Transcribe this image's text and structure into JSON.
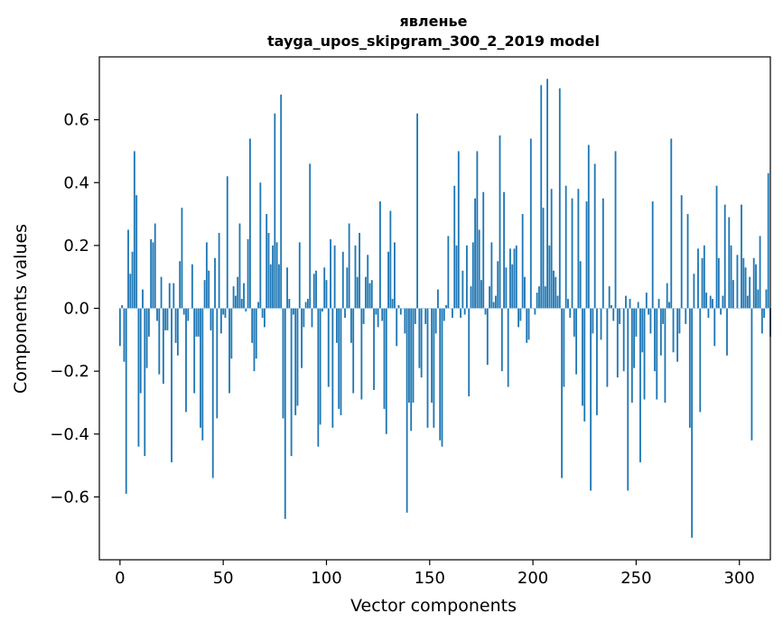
{
  "chart_data": {
    "type": "bar",
    "title": "явленье",
    "subtitle": "tayga_upos_skipgram_300_2_2019 model",
    "xlabel": "Vector components",
    "ylabel": "Components values",
    "xlim": [
      -10,
      315
    ],
    "ylim": [
      -0.8,
      0.8
    ],
    "xticks": [
      0,
      50,
      100,
      150,
      200,
      250,
      300
    ],
    "yticks": [
      -0.6,
      -0.4,
      -0.2,
      0.0,
      0.2,
      0.4,
      0.6
    ],
    "xtick_labels": [
      "0",
      "50",
      "100",
      "150",
      "200",
      "250",
      "300"
    ],
    "ytick_labels": [
      "−0.6",
      "−0.4",
      "−0.2",
      "0.0",
      "0.2",
      "0.4",
      "0.6"
    ],
    "grid": false,
    "bar_color": "#1f77b4",
    "values": [
      -0.12,
      0.01,
      -0.17,
      -0.59,
      0.25,
      0.11,
      0.18,
      0.5,
      0.36,
      -0.44,
      -0.27,
      0.06,
      -0.47,
      -0.19,
      -0.09,
      0.22,
      0.21,
      0.27,
      -0.04,
      -0.21,
      0.1,
      -0.24,
      -0.07,
      -0.07,
      0.08,
      -0.49,
      0.08,
      -0.11,
      -0.15,
      0.15,
      0.32,
      -0.02,
      -0.33,
      -0.04,
      0.0,
      0.14,
      -0.27,
      -0.09,
      -0.09,
      -0.38,
      -0.42,
      0.09,
      0.21,
      0.12,
      -0.07,
      -0.54,
      0.16,
      -0.35,
      0.24,
      -0.08,
      -0.02,
      -0.03,
      0.42,
      -0.27,
      -0.16,
      0.07,
      0.04,
      0.1,
      0.27,
      0.03,
      0.08,
      -0.01,
      0.22,
      0.54,
      -0.11,
      -0.2,
      -0.16,
      0.02,
      0.4,
      -0.03,
      -0.06,
      0.3,
      0.24,
      0.14,
      0.2,
      0.62,
      0.21,
      0.14,
      0.68,
      -0.35,
      -0.67,
      0.13,
      0.03,
      -0.47,
      -0.02,
      -0.34,
      -0.31,
      0.21,
      -0.19,
      -0.06,
      0.02,
      0.03,
      0.46,
      -0.06,
      0.11,
      0.12,
      -0.44,
      -0.37,
      -0.01,
      0.13,
      0.09,
      -0.25,
      0.22,
      -0.38,
      0.2,
      -0.11,
      -0.32,
      -0.34,
      0.18,
      -0.03,
      0.13,
      0.27,
      -0.11,
      -0.27,
      0.2,
      0.1,
      0.24,
      -0.29,
      -0.05,
      0.1,
      0.17,
      0.08,
      0.09,
      -0.26,
      -0.02,
      -0.06,
      0.34,
      -0.04,
      -0.32,
      -0.4,
      0.18,
      0.31,
      0.03,
      0.21,
      -0.12,
      0.01,
      -0.02,
      0.0,
      -0.08,
      -0.65,
      -0.3,
      -0.39,
      -0.3,
      -0.05,
      0.62,
      -0.19,
      -0.22,
      0.0,
      -0.05,
      -0.38,
      0.0,
      -0.3,
      -0.38,
      -0.08,
      0.06,
      -0.42,
      -0.44,
      -0.04,
      0.01,
      0.23,
      0.0,
      -0.03,
      0.39,
      0.2,
      0.5,
      -0.03,
      0.12,
      -0.02,
      0.2,
      -0.28,
      0.07,
      0.21,
      0.35,
      0.5,
      0.25,
      0.09,
      0.37,
      -0.02,
      -0.18,
      0.07,
      0.21,
      0.02,
      0.04,
      0.15,
      0.55,
      -0.2,
      0.37,
      0.13,
      -0.25,
      0.19,
      0.14,
      0.19,
      0.2,
      -0.06,
      -0.04,
      0.3,
      0.1,
      -0.11,
      -0.1,
      0.54,
      0.0,
      -0.02,
      0.05,
      0.07,
      0.71,
      0.32,
      0.07,
      0.73,
      0.2,
      0.38,
      0.12,
      0.1,
      0.04,
      0.7,
      -0.54,
      -0.25,
      0.39,
      0.03,
      -0.03,
      0.35,
      -0.09,
      -0.21,
      0.38,
      0.15,
      -0.31,
      -0.36,
      0.34,
      0.52,
      -0.58,
      -0.08,
      0.46,
      -0.34,
      0.0,
      -0.1,
      0.35,
      0.0,
      -0.25,
      0.07,
      0.01,
      -0.04,
      0.5,
      -0.22,
      -0.05,
      0.0,
      -0.2,
      0.04,
      -0.58,
      0.03,
      -0.3,
      -0.19,
      -0.09,
      0.02,
      -0.49,
      -0.14,
      -0.29,
      0.05,
      -0.02,
      -0.08,
      0.34,
      -0.2,
      -0.29,
      0.03,
      -0.15,
      -0.05,
      -0.3,
      0.08,
      0.02,
      0.54,
      -0.14,
      0.0,
      -0.17,
      -0.08,
      0.36,
      0.0,
      -0.05,
      0.3,
      -0.38,
      -0.73,
      0.11,
      0.0,
      0.19,
      -0.33,
      0.16,
      0.2,
      0.05,
      -0.03,
      0.04,
      0.03,
      -0.12,
      0.39,
      0.16,
      -0.02,
      0.04,
      0.33,
      -0.15,
      0.29,
      0.2,
      0.09,
      0.0,
      0.17,
      0.0,
      0.33,
      0.16,
      0.13,
      0.04,
      0.1,
      -0.42,
      0.16,
      0.14,
      0.06,
      0.23,
      -0.08,
      -0.03,
      0.06,
      0.43,
      -0.09
    ]
  }
}
